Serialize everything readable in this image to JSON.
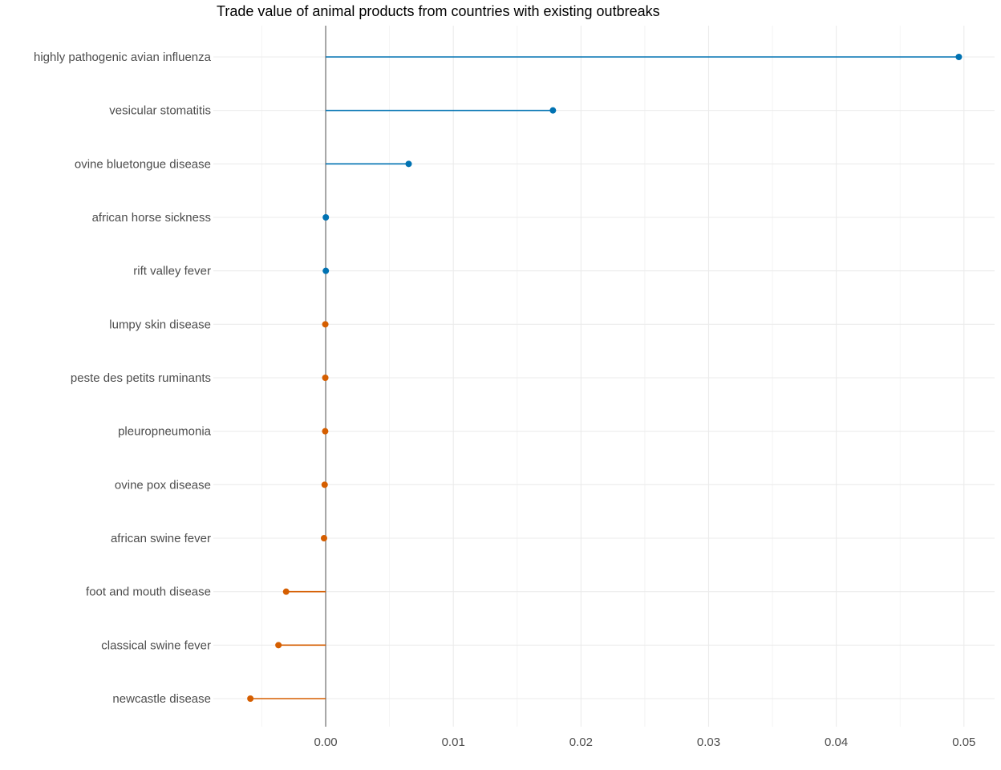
{
  "chart_data": {
    "type": "lollipop",
    "title": "Trade value of animal products from countries with existing outbreaks",
    "xlabel": "",
    "ylabel": "",
    "xlim": [
      -0.0088,
      0.0524
    ],
    "x_ticks": [
      "0.00",
      "0.01",
      "0.02",
      "0.03",
      "0.04",
      "0.05"
    ],
    "x_tick_values": [
      0,
      0.01,
      0.02,
      0.03,
      0.04,
      0.05
    ],
    "grid": true,
    "legend": "none",
    "colors": {
      "positive": "#0072B2",
      "negative": "#D55E00",
      "zero_line": "#808080"
    },
    "categories": [
      "highly pathogenic avian influenza",
      "vesicular stomatitis",
      "ovine bluetongue disease",
      "african horse sickness",
      "rift valley fever",
      "lumpy skin disease",
      "peste des petits ruminants",
      "pleuropneumonia",
      "ovine pox disease",
      "african swine fever",
      "foot and mouth disease",
      "classical swine fever",
      "newcastle disease"
    ],
    "values": [
      0.0496,
      0.0178,
      0.0065,
      1e-05,
      1e-05,
      -3e-05,
      -3e-05,
      -4e-05,
      -8e-05,
      -0.00013,
      -0.0031,
      -0.0037,
      -0.0059
    ]
  }
}
